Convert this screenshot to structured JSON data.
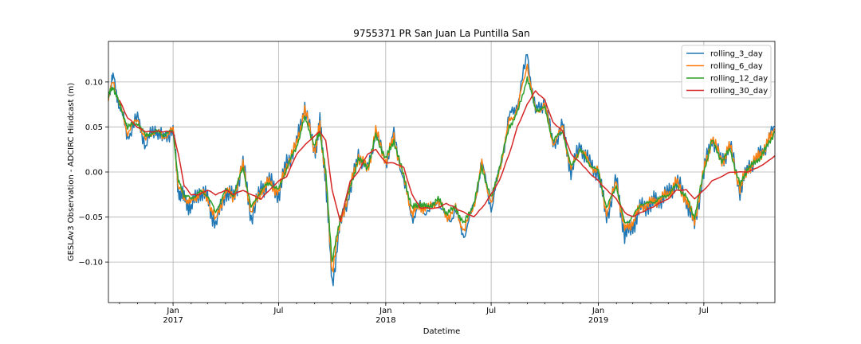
{
  "chart_data": {
    "type": "line",
    "title": "9755371 PR San Juan La Puntilla San",
    "xlabel": "Datetime",
    "ylabel": "GESLAv3 Observation - ADCIRC Hindcast (m)",
    "xlim": [
      "2016-09-12",
      "2019-10-31"
    ],
    "ylim": [
      -0.145,
      0.145
    ],
    "grid": true,
    "legend": "top-right",
    "x_ticks": [
      {
        "date": "2017-01-01",
        "label": "Jan",
        "sublabel": "2017"
      },
      {
        "date": "2017-07-01",
        "label": "Jul",
        "sublabel": ""
      },
      {
        "date": "2018-01-01",
        "label": "Jan",
        "sublabel": "2018"
      },
      {
        "date": "2018-07-01",
        "label": "Jul",
        "sublabel": ""
      },
      {
        "date": "2019-01-01",
        "label": "Jan",
        "sublabel": "2019"
      },
      {
        "date": "2019-07-01",
        "label": "Jul",
        "sublabel": ""
      }
    ],
    "y_ticks": [
      {
        "value": -0.1,
        "label": "−0.10"
      },
      {
        "value": -0.05,
        "label": "−0.05"
      },
      {
        "value": 0.0,
        "label": "0.00"
      },
      {
        "value": 0.05,
        "label": "0.05"
      },
      {
        "value": 0.1,
        "label": "0.10"
      }
    ],
    "x": [
      "2016-09-12",
      "2016-09-20",
      "2016-10-01",
      "2016-10-15",
      "2016-11-01",
      "2016-11-15",
      "2016-12-01",
      "2016-12-15",
      "2017-01-01",
      "2017-01-10",
      "2017-01-20",
      "2017-02-01",
      "2017-02-15",
      "2017-03-01",
      "2017-03-15",
      "2017-04-01",
      "2017-04-15",
      "2017-05-01",
      "2017-05-15",
      "2017-06-01",
      "2017-06-15",
      "2017-07-01",
      "2017-07-15",
      "2017-08-01",
      "2017-08-15",
      "2017-09-01",
      "2017-09-10",
      "2017-09-20",
      "2017-10-01",
      "2017-10-15",
      "2017-11-01",
      "2017-11-15",
      "2017-12-01",
      "2017-12-15",
      "2018-01-01",
      "2018-01-15",
      "2018-02-01",
      "2018-02-15",
      "2018-03-01",
      "2018-03-15",
      "2018-04-01",
      "2018-04-15",
      "2018-05-01",
      "2018-05-15",
      "2018-06-01",
      "2018-06-15",
      "2018-07-01",
      "2018-07-15",
      "2018-08-01",
      "2018-08-15",
      "2018-09-01",
      "2018-09-15",
      "2018-10-01",
      "2018-10-15",
      "2018-11-01",
      "2018-11-15",
      "2018-12-01",
      "2018-12-15",
      "2019-01-01",
      "2019-01-15",
      "2019-02-01",
      "2019-02-15",
      "2019-03-01",
      "2019-03-15",
      "2019-04-01",
      "2019-04-15",
      "2019-05-01",
      "2019-05-15",
      "2019-06-01",
      "2019-06-15",
      "2019-07-01",
      "2019-07-15",
      "2019-08-01",
      "2019-08-15",
      "2019-09-01",
      "2019-09-15",
      "2019-10-01",
      "2019-10-15",
      "2019-10-31"
    ],
    "series": [
      {
        "name": "rolling_3_day",
        "color": "#1f77b4",
        "values": [
          0.085,
          0.105,
          0.075,
          0.04,
          0.06,
          0.03,
          0.05,
          0.035,
          0.05,
          -0.02,
          -0.03,
          -0.04,
          -0.02,
          -0.03,
          -0.06,
          -0.02,
          -0.03,
          0.01,
          -0.05,
          -0.02,
          -0.01,
          -0.025,
          0.01,
          0.03,
          0.075,
          0.02,
          0.055,
          -0.01,
          -0.125,
          -0.06,
          -0.02,
          0.02,
          0.0,
          0.045,
          0.01,
          0.04,
          -0.01,
          -0.05,
          -0.04,
          -0.045,
          -0.03,
          -0.055,
          -0.045,
          -0.07,
          -0.04,
          0.01,
          -0.04,
          0.0,
          0.06,
          0.075,
          0.13,
          0.065,
          0.08,
          0.03,
          0.05,
          0.0,
          0.03,
          0.01,
          0.0,
          -0.05,
          -0.01,
          -0.07,
          -0.06,
          -0.04,
          -0.035,
          -0.03,
          -0.025,
          -0.01,
          -0.03,
          -0.06,
          0.0,
          0.04,
          0.01,
          0.03,
          -0.02,
          0.005,
          0.015,
          0.03,
          0.05
        ]
      },
      {
        "name": "rolling_6_day",
        "color": "#ff7f0e",
        "values": [
          0.085,
          0.1,
          0.075,
          0.045,
          0.058,
          0.035,
          0.048,
          0.038,
          0.048,
          -0.015,
          -0.028,
          -0.035,
          -0.022,
          -0.028,
          -0.055,
          -0.02,
          -0.028,
          0.008,
          -0.045,
          -0.02,
          -0.012,
          -0.022,
          0.008,
          0.03,
          0.07,
          0.025,
          0.05,
          -0.005,
          -0.11,
          -0.055,
          -0.018,
          0.018,
          0.002,
          0.045,
          0.012,
          0.038,
          -0.008,
          -0.045,
          -0.038,
          -0.042,
          -0.03,
          -0.05,
          -0.042,
          -0.065,
          -0.038,
          0.008,
          -0.035,
          0.002,
          0.055,
          0.07,
          0.12,
          0.065,
          0.075,
          0.032,
          0.048,
          0.002,
          0.028,
          0.01,
          0.0,
          -0.045,
          -0.012,
          -0.065,
          -0.055,
          -0.038,
          -0.035,
          -0.03,
          -0.025,
          -0.012,
          -0.03,
          -0.055,
          0.0,
          0.038,
          0.012,
          0.028,
          -0.018,
          0.005,
          0.015,
          0.028,
          0.048
        ]
      },
      {
        "name": "rolling_12_day",
        "color": "#2ca02c",
        "values": [
          0.085,
          0.095,
          0.075,
          0.05,
          0.055,
          0.04,
          0.045,
          0.042,
          0.045,
          -0.01,
          -0.025,
          -0.03,
          -0.022,
          -0.025,
          -0.045,
          -0.02,
          -0.025,
          0.005,
          -0.04,
          -0.02,
          -0.012,
          -0.02,
          0.005,
          0.028,
          0.06,
          0.03,
          0.045,
          0.0,
          -0.1,
          -0.05,
          -0.018,
          0.015,
          0.005,
          0.04,
          0.015,
          0.035,
          -0.005,
          -0.04,
          -0.035,
          -0.04,
          -0.03,
          -0.045,
          -0.04,
          -0.058,
          -0.035,
          0.005,
          -0.03,
          0.005,
          0.05,
          0.065,
          0.105,
          0.07,
          0.07,
          0.035,
          0.045,
          0.005,
          0.025,
          0.01,
          0.0,
          -0.04,
          -0.015,
          -0.058,
          -0.05,
          -0.035,
          -0.035,
          -0.03,
          -0.025,
          -0.015,
          -0.028,
          -0.05,
          0.0,
          0.035,
          0.012,
          0.025,
          -0.015,
          0.005,
          0.012,
          0.025,
          0.045
        ]
      },
      {
        "name": "rolling_30_day",
        "color": "#d62728",
        "values": [
          null,
          null,
          0.08,
          0.06,
          0.05,
          0.045,
          0.045,
          0.045,
          0.045,
          0.02,
          -0.015,
          -0.025,
          -0.025,
          -0.02,
          -0.025,
          -0.02,
          -0.025,
          -0.02,
          -0.025,
          -0.03,
          -0.02,
          -0.01,
          -0.005,
          0.02,
          0.03,
          0.04,
          0.045,
          0.035,
          -0.02,
          -0.055,
          -0.01,
          0.0,
          0.02,
          0.025,
          0.01,
          0.01,
          0.005,
          -0.025,
          -0.04,
          -0.04,
          -0.04,
          -0.035,
          -0.04,
          -0.045,
          -0.05,
          -0.04,
          -0.025,
          -0.01,
          0.02,
          0.05,
          0.075,
          0.09,
          0.08,
          0.055,
          0.045,
          0.02,
          0.01,
          0.0,
          -0.01,
          -0.02,
          -0.03,
          -0.045,
          -0.05,
          -0.045,
          -0.04,
          -0.035,
          -0.03,
          -0.02,
          -0.02,
          -0.03,
          -0.02,
          -0.01,
          -0.005,
          0.0,
          0.0,
          0.0,
          0.005,
          0.01,
          0.018
        ]
      }
    ]
  }
}
